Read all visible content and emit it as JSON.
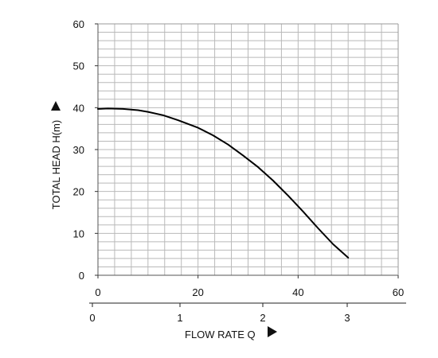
{
  "chart_data": {
    "type": "line",
    "xlabel": "FLOW RATE Q",
    "ylabel": "TOTAL HEAD H(m)",
    "ylim": [
      0,
      60
    ],
    "y_ticks": [
      "0",
      "10",
      "20",
      "30",
      "40",
      "50",
      "60"
    ],
    "xlim": [
      0,
      60
    ],
    "x_ticks": [
      "0",
      "20",
      "40",
      "60"
    ],
    "secondary_x": {
      "ticks": [
        "0",
        "1",
        "2",
        "3"
      ],
      "note": "second flow scale drawn below the plot"
    },
    "grid": true,
    "series": [
      {
        "x": [
          0,
          2,
          5,
          8,
          10,
          13,
          16,
          20,
          23,
          26,
          29,
          32,
          35,
          38,
          41,
          44,
          47,
          50
        ],
        "y": [
          39.7,
          39.8,
          39.7,
          39.4,
          39.0,
          38.2,
          37.0,
          35.2,
          33.4,
          31.2,
          28.6,
          25.8,
          22.6,
          19.0,
          15.2,
          11.2,
          7.4,
          4.2
        ]
      }
    ],
    "colors": {
      "line": "#000000",
      "grid": "#b9b9b9",
      "axis": "#222222"
    },
    "arrow_icons": [
      "up-triangle-icon",
      "right-triangle-icon"
    ]
  }
}
